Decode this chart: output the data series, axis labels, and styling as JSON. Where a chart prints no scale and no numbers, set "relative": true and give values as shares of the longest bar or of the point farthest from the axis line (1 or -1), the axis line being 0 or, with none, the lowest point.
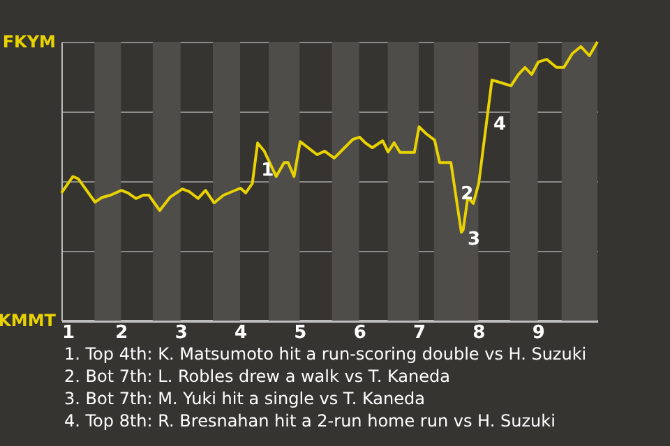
{
  "chart_data": {
    "type": "line",
    "x": [
      1,
      1.194,
      1.286,
      1.564,
      1.686,
      1.825,
      2.007,
      2.118,
      2.251,
      2.378,
      2.467,
      2.651,
      2.822,
      3.029,
      3.151,
      3.294,
      3.42,
      3.563,
      3.723,
      4.006,
      4.094,
      4.206,
      4.294,
      4.406,
      4.606,
      4.74,
      4.806,
      4.906,
      5.009,
      5.294,
      5.42,
      5.58,
      5.894,
      6.006,
      6.106,
      6.22,
      6.394,
      6.486,
      6.586,
      6.686,
      6.926,
      7.005,
      7.127,
      7.267,
      7.351,
      7.54,
      7.715,
      7.745,
      7.824,
      7.915,
      8.007,
      8.229,
      8.356,
      8.549,
      8.673,
      8.784,
      8.896,
      9.009,
      9.151,
      9.314,
      9.437,
      9.58,
      9.723,
      9.866,
      10
    ],
    "series": [
      {
        "color": "#e8d200",
        "values": [
          0.458,
          0.517,
          0.508,
          0.425,
          0.442,
          0.45,
          0.467,
          0.458,
          0.438,
          0.45,
          0.45,
          0.395,
          0.442,
          0.472,
          0.462,
          0.438,
          0.467,
          0.422,
          0.45,
          0.475,
          0.458,
          0.492,
          0.637,
          0.608,
          0.517,
          0.567,
          0.567,
          0.517,
          0.642,
          0.595,
          0.608,
          0.583,
          0.65,
          0.658,
          0.637,
          0.62,
          0.645,
          0.605,
          0.638,
          0.603,
          0.603,
          0.695,
          0.67,
          0.647,
          0.567,
          0.567,
          0.317,
          0.325,
          0.442,
          0.42,
          0.492,
          0.863,
          0.855,
          0.842,
          0.883,
          0.908,
          0.883,
          0.928,
          0.937,
          0.908,
          0.908,
          0.958,
          0.983,
          0.95,
          1.0
        ]
      }
    ],
    "xlim": [
      1,
      10
    ],
    "xticks": [
      1,
      2,
      3,
      4,
      5,
      6,
      7,
      8,
      9
    ],
    "relative": true,
    "grid": "y",
    "bands": [
      {
        "axis": "x",
        "from": 1.556,
        "to": 2,
        "color": "#4f4d4a"
      },
      {
        "axis": "x",
        "from": 2.533,
        "to": 3,
        "color": "#4f4d4a"
      },
      {
        "axis": "x",
        "from": 3.543,
        "to": 4,
        "color": "#4f4d4a"
      },
      {
        "axis": "x",
        "from": 4.48,
        "to": 5,
        "color": "#4f4d4a"
      },
      {
        "axis": "x",
        "from": 5.543,
        "to": 6,
        "color": "#4f4d4a"
      },
      {
        "axis": "x",
        "from": 6.48,
        "to": 7,
        "color": "#4f4d4a"
      },
      {
        "axis": "x",
        "from": 7.255,
        "to": 8,
        "color": "#4f4d4a"
      },
      {
        "axis": "x",
        "from": 8.533,
        "to": 9,
        "color": "#4f4d4a"
      },
      {
        "axis": "x",
        "from": 9.4,
        "to": 10,
        "color": "#4f4d4a"
      }
    ],
    "annotations": [
      "FKYM",
      "KMMT",
      {
        "text": "1",
        "x": 4.25,
        "y": 0.565
      },
      {
        "text": "2",
        "x": 7.6,
        "y": 0.481
      },
      {
        "text": "3",
        "x": 7.715,
        "y": 0.317
      },
      {
        "text": "4",
        "x": 8.15,
        "y": 0.731
      },
      "1. Top 4th: K. Matsumoto hit a run-scoring double vs H. Suzuki",
      "2. Bot 7th: L. Robles drew a walk vs T. Kaneda",
      "3. Bot 7th: M. Yuki hit a single vs T. Kaneda",
      "4. Top 8th: R. Bresnahan hit a 2-run home run vs H. Suzuki"
    ]
  }
}
